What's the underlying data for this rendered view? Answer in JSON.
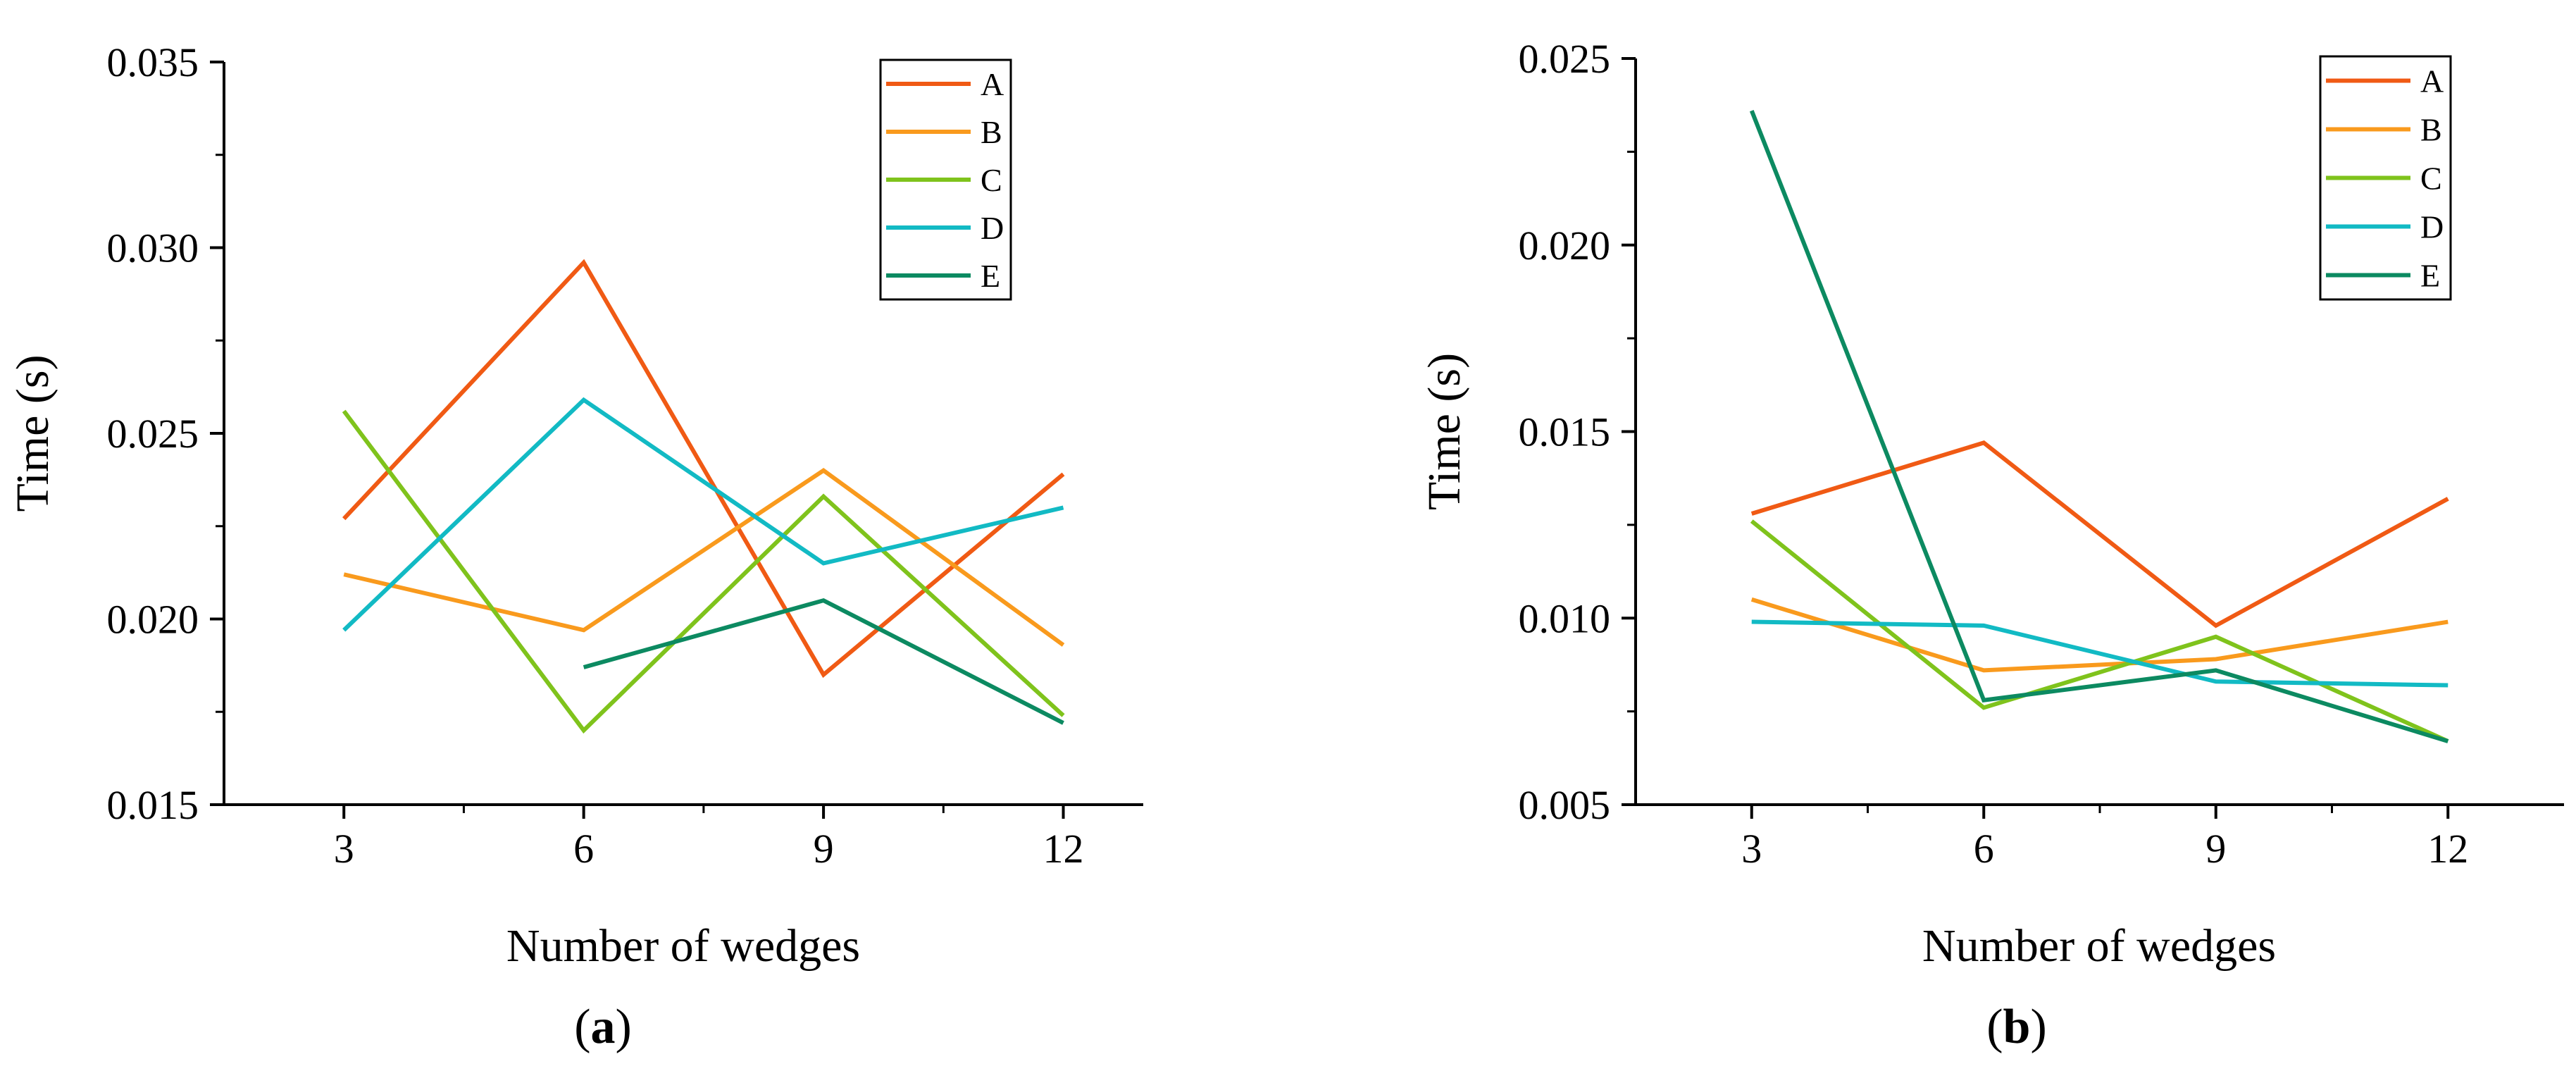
{
  "chart_data": [
    {
      "type": "line",
      "panel_label": "a",
      "xlabel": "Number of wedges",
      "ylabel": "Time (s)",
      "x": [
        3,
        6,
        9,
        12
      ],
      "xlim": [
        1.5,
        13
      ],
      "ylim": [
        0.015,
        0.035
      ],
      "xticks": [
        3,
        6,
        9,
        12
      ],
      "yticks": [
        0.015,
        0.02,
        0.025,
        0.03,
        0.035
      ],
      "ytick_labels": [
        "0.015",
        "0.020",
        "0.025",
        "0.030",
        "0.035"
      ],
      "legend_position": "top-right",
      "series": [
        {
          "name": "A",
          "color": "#f05a14",
          "values": [
            0.0227,
            0.0296,
            0.0185,
            0.0239
          ]
        },
        {
          "name": "B",
          "color": "#f99a1d",
          "values": [
            0.0212,
            0.0197,
            0.024,
            0.0193
          ]
        },
        {
          "name": "C",
          "color": "#7fc31c",
          "values": [
            0.0256,
            0.017,
            0.0233,
            0.0174
          ]
        },
        {
          "name": "D",
          "color": "#12bac4",
          "values": [
            0.0197,
            0.0259,
            0.0215,
            0.023
          ]
        },
        {
          "name": "E",
          "color": "#0c8a61",
          "values": [
            null,
            0.0187,
            0.0205,
            0.0172
          ]
        }
      ]
    },
    {
      "type": "line",
      "panel_label": "b",
      "xlabel": "Number of wedges",
      "ylabel": "Time (s)",
      "x": [
        3,
        6,
        9,
        12
      ],
      "xlim": [
        1.5,
        13.5
      ],
      "ylim": [
        0.005,
        0.025
      ],
      "xticks": [
        3,
        6,
        9,
        12
      ],
      "yticks": [
        0.005,
        0.01,
        0.015,
        0.02,
        0.025
      ],
      "ytick_labels": [
        "0.005",
        "0.010",
        "0.015",
        "0.020",
        "0.025"
      ],
      "legend_position": "top-right",
      "series": [
        {
          "name": "A",
          "color": "#f05a14",
          "values": [
            0.0128,
            0.0147,
            0.0098,
            0.0132
          ]
        },
        {
          "name": "B",
          "color": "#f99a1d",
          "values": [
            0.0105,
            0.0086,
            0.0089,
            0.0099
          ]
        },
        {
          "name": "C",
          "color": "#7fc31c",
          "values": [
            0.0126,
            0.0076,
            0.0095,
            0.0067
          ]
        },
        {
          "name": "D",
          "color": "#12bac4",
          "values": [
            0.0099,
            0.0098,
            0.0083,
            0.0082
          ]
        },
        {
          "name": "E",
          "color": "#0c8a61",
          "values": [
            0.0236,
            0.0078,
            0.0086,
            0.0067
          ]
        }
      ]
    }
  ]
}
